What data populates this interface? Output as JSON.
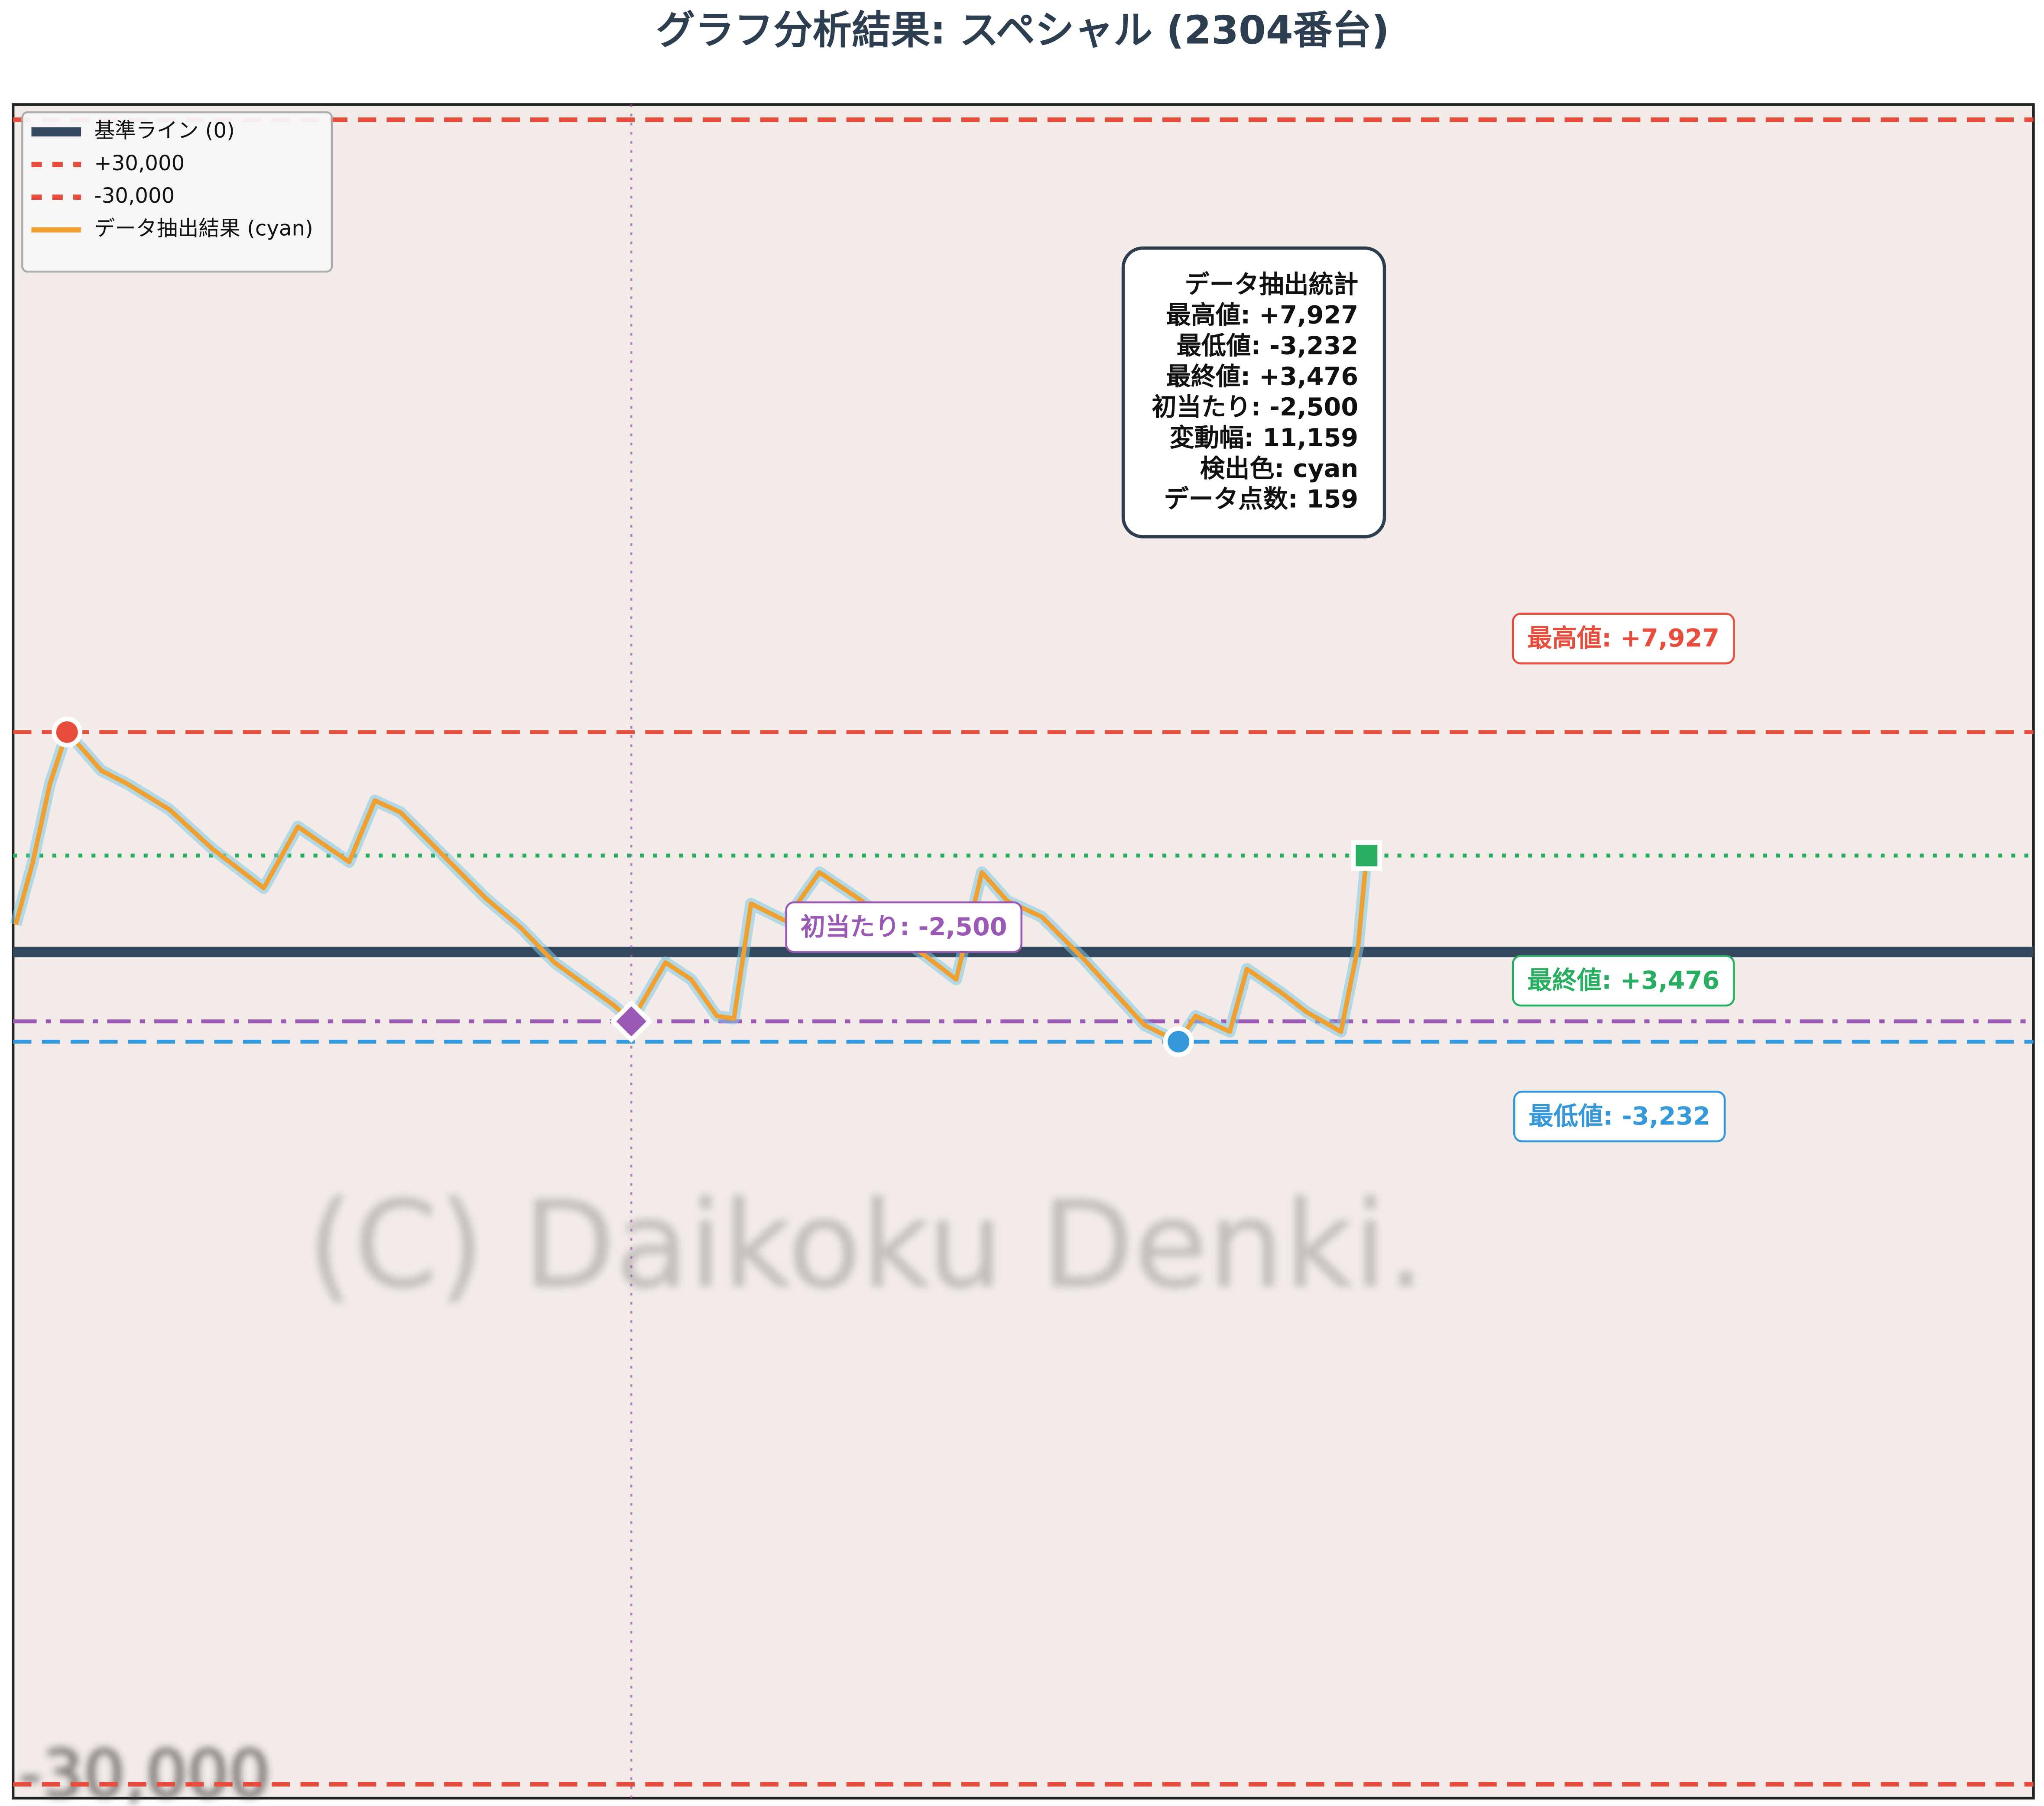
{
  "chart_data": {
    "type": "line",
    "title": "グラフ分析結果: スペシャル (2304番台)",
    "xlim": [
      0,
      236
    ],
    "ylim": [
      -30500,
      30550
    ],
    "series": [
      {
        "name": "データ抽出結果 (cyan)",
        "color": "#f0a030",
        "glow": "#7ec8e3",
        "x": [
          0,
          2,
          4,
          6,
          8,
          10,
          13,
          18,
          23,
          29,
          33,
          39,
          42,
          45,
          50,
          55,
          59,
          63,
          70,
          72,
          76,
          79,
          82,
          84,
          86,
          90,
          94,
          99,
          105,
          110,
          113,
          116,
          120,
          125,
          132,
          136,
          138,
          142,
          144,
          148,
          151,
          155,
          157,
          158
        ],
        "values": [
          988,
          3247,
          6071,
          7927,
          7247,
          6541,
          6071,
          5129,
          3718,
          2306,
          4518,
          3247,
          5459,
          5035,
          3482,
          1929,
          894,
          -376,
          -1929,
          -2500,
          -376,
          -988,
          -2306,
          -2400,
          1741,
          1129,
          2871,
          1835,
          188,
          -988,
          2871,
          1835,
          1271,
          -282,
          -2635,
          -3232,
          -2306,
          -2871,
          -612,
          -1459,
          -2165,
          -2871,
          188,
          3476
        ]
      }
    ],
    "reference_lines": [
      {
        "name": "基準ライン (0)",
        "value": 0,
        "color": "#34495e",
        "dash": "solid"
      },
      {
        "name": "+30,000",
        "value": 30000,
        "color": "#e74c3c",
        "dash": "dashed"
      },
      {
        "name": "-30,000",
        "value": -30000,
        "color": "#e74c3c",
        "dash": "dashed"
      }
    ],
    "annotations": [
      {
        "label": "最高値: +7,927",
        "x": 6,
        "value": 7927,
        "color": "#e74c3c",
        "marker": "circle",
        "dash": "dashed"
      },
      {
        "label": "最終値: +3,476",
        "x": 158,
        "value": 3476,
        "color": "#27ae60",
        "marker": "square",
        "dash": "dotted"
      },
      {
        "label": "最低値: -3,232",
        "x": 136,
        "value": -3232,
        "color": "#3498db",
        "marker": "circle",
        "dash": "dashed"
      },
      {
        "label": "初当たり: -2,500",
        "x": 72,
        "value": -2500,
        "color": "#9b59b6",
        "marker": "diamond",
        "dash": "dashdot",
        "vline": true
      }
    ],
    "stats_box": [
      "データ抽出統計",
      "最高値: +7,927",
      "最低値: -3,232",
      "最終値: +3,476",
      "初当たり: -2,500",
      "変動幅: 11,159",
      "検出色: cyan",
      "データ点数: 159"
    ],
    "watermark": "(C) Daikoku Denki.",
    "background_texts": [
      "-30,000"
    ],
    "legend": "upper left"
  }
}
